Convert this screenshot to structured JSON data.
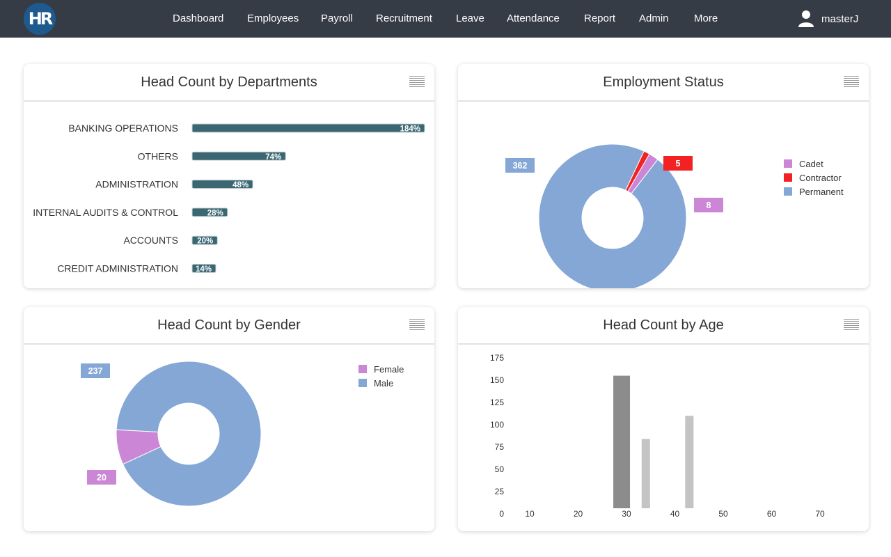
{
  "app": {
    "logo_text": "HR"
  },
  "nav": {
    "items": [
      "Dashboard",
      "Employees",
      "Payroll",
      "Recruitment",
      "Leave",
      "Attendance",
      "Report",
      "Admin",
      "More"
    ]
  },
  "user": {
    "name": "masterJ"
  },
  "colors": {
    "topbar": "#353c45",
    "bar": "#3b6773",
    "cadet": "#cb86d6",
    "contractor": "#f22222",
    "permanent": "#85a7d5",
    "female": "#cb86d6",
    "male": "#85a7d5",
    "age_bar_dark": "#8c8c8c",
    "age_bar_light": "#c4c4c4"
  },
  "cards": {
    "departments": {
      "title": "Head Count by Departments"
    },
    "employment": {
      "title": "Employment Status"
    },
    "gender": {
      "title": "Head Count by Gender"
    },
    "age": {
      "title": "Head Count by Age"
    }
  },
  "chart_data": [
    {
      "id": "departments",
      "type": "bar",
      "orientation": "horizontal",
      "title": "Head Count by Departments",
      "categories": [
        "BANKING OPERATIONS",
        "OTHERS",
        "ADMINISTRATION",
        "INTERNAL AUDITS & CONTROL",
        "ACCOUNTS",
        "CREDIT ADMINISTRATION"
      ],
      "values": [
        184,
        74,
        48,
        28,
        20,
        14
      ],
      "labels": [
        "184%",
        "74%",
        "48%",
        "28%",
        "20%",
        "14%"
      ]
    },
    {
      "id": "employment",
      "type": "pie",
      "donut": true,
      "title": "Employment Status",
      "legend": "top-right",
      "slices": [
        {
          "name": "Cadet",
          "value": 8,
          "label": "8"
        },
        {
          "name": "Contractor",
          "value": 5,
          "label": "5"
        },
        {
          "name": "Permanent",
          "value": 362,
          "label": "362"
        }
      ]
    },
    {
      "id": "gender",
      "type": "pie",
      "donut": true,
      "title": "Head Count by Gender",
      "legend": "top-right",
      "slices": [
        {
          "name": "Female",
          "value": 20,
          "label": "20"
        },
        {
          "name": "Male",
          "value": 237,
          "label": "237"
        }
      ]
    },
    {
      "id": "age",
      "type": "bar",
      "title": "Head Count by Age",
      "xlim": [
        5,
        75
      ],
      "ylim": [
        0,
        175
      ],
      "xticks": [
        "10",
        "20",
        "30",
        "40",
        "50",
        "60",
        "70"
      ],
      "yticks": [
        "0",
        "25",
        "50",
        "75",
        "100",
        "125",
        "150",
        "175"
      ],
      "grid": false,
      "bars": [
        {
          "x": 29,
          "value": 155,
          "shade": "dark"
        },
        {
          "x": 34,
          "value": 84,
          "shade": "light"
        },
        {
          "x": 43,
          "value": 110,
          "shade": "light"
        }
      ]
    }
  ]
}
